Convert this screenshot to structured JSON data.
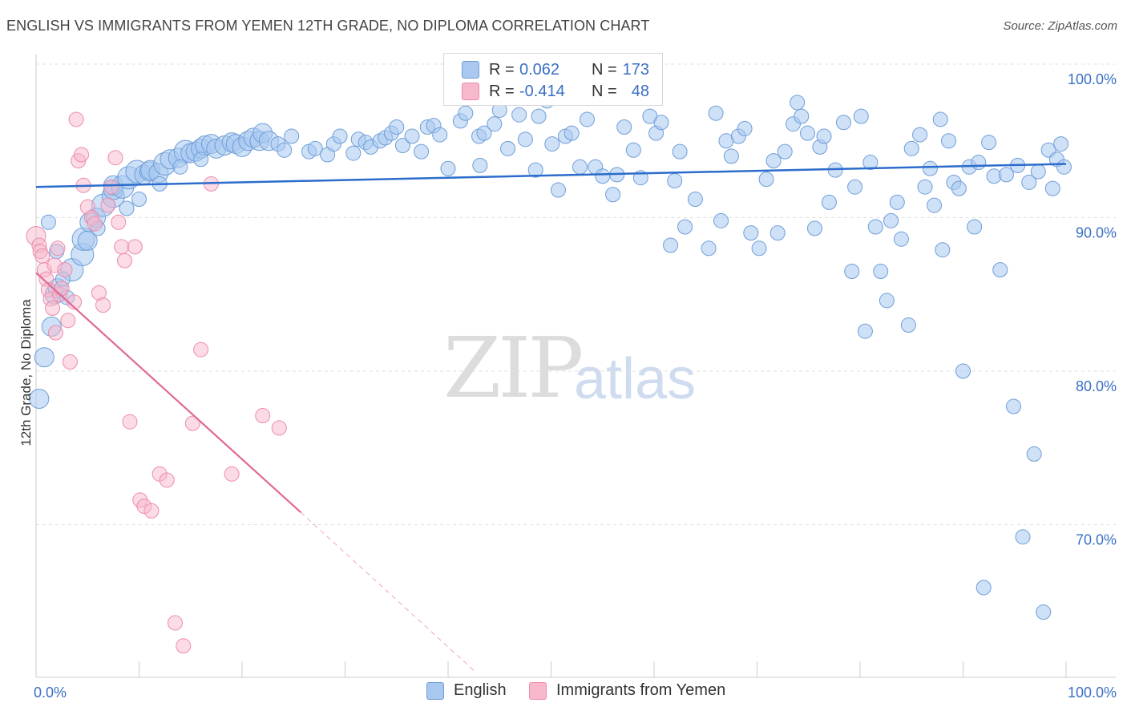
{
  "title": "ENGLISH VS IMMIGRANTS FROM YEMEN 12TH GRADE, NO DIPLOMA CORRELATION CHART",
  "source": "Source: ZipAtlas.com",
  "watermark": {
    "zip": "ZIP",
    "atlas": "atlas"
  },
  "legend": {
    "english": {
      "r_label": "R =",
      "r_value": "0.062",
      "n_label": "N =",
      "n_value": "173"
    },
    "yemen": {
      "r_label": "R =",
      "r_value": "-0.414",
      "n_label": "N =",
      "n_value": "48"
    }
  },
  "colors": {
    "english_fill": "#a8c8f0",
    "english_stroke": "#6f9ed8",
    "english_line": "#2b6ccc",
    "yemen_fill": "#f7b8cc",
    "yemen_stroke": "#ec8cab",
    "yemen_line": "#e06a93",
    "axis_text": "#3a6fc4",
    "grid": "#e0e0e0"
  },
  "chart_data": {
    "type": "scatter",
    "title": "ENGLISH VS IMMIGRANTS FROM YEMEN 12TH GRADE, NO DIPLOMA CORRELATION CHART",
    "xlabel": "",
    "ylabel": "12th Grade, No Diploma",
    "xlim": [
      0,
      100
    ],
    "ylim": [
      60,
      102
    ],
    "x_tick_labels": [
      "0.0%",
      "100.0%"
    ],
    "y_tick_labels": [
      {
        "value": 100,
        "label": "100.0%"
      },
      {
        "value": 90,
        "label": "90.0%"
      },
      {
        "value": 80,
        "label": "80.0%"
      },
      {
        "value": 70,
        "label": "70.0%"
      }
    ],
    "legend_position": "bottom",
    "series": [
      {
        "name": "English",
        "r": 0.062,
        "n": 173,
        "trend": {
          "x": [
            0,
            100
          ],
          "y": [
            92.0,
            93.5
          ],
          "style": "solid"
        },
        "points": [
          [
            0.3,
            78.2,
            12
          ],
          [
            0.8,
            80.9,
            12
          ],
          [
            1.5,
            82.9,
            12
          ],
          [
            1.8,
            85.0,
            12
          ],
          [
            2.1,
            85.4,
            12
          ],
          [
            3.5,
            86.6,
            14
          ],
          [
            4.5,
            87.6,
            14
          ],
          [
            4.6,
            88.6,
            14
          ],
          [
            5.0,
            88.5,
            12
          ],
          [
            5.2,
            89.7,
            12
          ],
          [
            5.8,
            90.0,
            12
          ],
          [
            6.5,
            90.8,
            14
          ],
          [
            7.5,
            91.4,
            14
          ],
          [
            7.5,
            91.8,
            12
          ],
          [
            7.5,
            92.1,
            12
          ],
          [
            8.4,
            92.0,
            14
          ],
          [
            9.0,
            92.6,
            14
          ],
          [
            9.8,
            93.0,
            14
          ],
          [
            10.5,
            92.8,
            12
          ],
          [
            11.0,
            93.0,
            12
          ],
          [
            11.1,
            93.1,
            12
          ],
          [
            11.9,
            92.9,
            12
          ],
          [
            12.5,
            93.5,
            14
          ],
          [
            13.0,
            93.8,
            12
          ],
          [
            13.8,
            93.9,
            12
          ],
          [
            14.5,
            94.3,
            14
          ],
          [
            15.0,
            94.2,
            12
          ],
          [
            15.5,
            94.3,
            12
          ],
          [
            16.0,
            94.5,
            12
          ],
          [
            16.4,
            94.7,
            12
          ],
          [
            17.0,
            94.8,
            12
          ],
          [
            17.5,
            94.5,
            12
          ],
          [
            18.3,
            94.7,
            12
          ],
          [
            19.0,
            94.9,
            12
          ],
          [
            19.4,
            94.8,
            12
          ],
          [
            20.0,
            94.6,
            12
          ],
          [
            20.6,
            95.0,
            12
          ],
          [
            21.1,
            95.2,
            12
          ],
          [
            21.7,
            95.0,
            12
          ],
          [
            22.0,
            95.5,
            12
          ],
          [
            22.6,
            95.0,
            12
          ],
          [
            23.5,
            94.8,
            9
          ],
          [
            24.1,
            94.4,
            9
          ],
          [
            24.8,
            95.3,
            9
          ],
          [
            26.5,
            94.3,
            9
          ],
          [
            27.1,
            94.5,
            9
          ],
          [
            28.3,
            94.1,
            9
          ],
          [
            28.9,
            94.8,
            9
          ],
          [
            29.5,
            95.3,
            9
          ],
          [
            30.8,
            94.2,
            9
          ],
          [
            31.3,
            95.1,
            9
          ],
          [
            32.0,
            94.9,
            9
          ],
          [
            32.5,
            94.6,
            9
          ],
          [
            33.4,
            95.0,
            9
          ],
          [
            33.9,
            95.2,
            9
          ],
          [
            34.5,
            95.5,
            9
          ],
          [
            35.0,
            95.9,
            9
          ],
          [
            35.6,
            94.7,
            9
          ],
          [
            36.5,
            95.3,
            9
          ],
          [
            37.4,
            94.3,
            9
          ],
          [
            38.0,
            95.9,
            9
          ],
          [
            38.6,
            96.0,
            9
          ],
          [
            39.2,
            95.4,
            9
          ],
          [
            40.0,
            93.2,
            9
          ],
          [
            41.2,
            96.3,
            9
          ],
          [
            41.7,
            96.8,
            9
          ],
          [
            43.0,
            95.3,
            9
          ],
          [
            43.1,
            93.4,
            9
          ],
          [
            43.5,
            95.5,
            9
          ],
          [
            44.5,
            96.1,
            9
          ],
          [
            45.0,
            97.0,
            9
          ],
          [
            45.8,
            94.5,
            9
          ],
          [
            46.9,
            96.7,
            9
          ],
          [
            47.5,
            95.1,
            9
          ],
          [
            48.5,
            93.1,
            9
          ],
          [
            48.8,
            96.6,
            9
          ],
          [
            49.6,
            97.6,
            9
          ],
          [
            50.1,
            94.8,
            9
          ],
          [
            50.7,
            91.8,
            9
          ],
          [
            51.4,
            95.3,
            9
          ],
          [
            52.0,
            95.5,
            9
          ],
          [
            52.8,
            93.3,
            9
          ],
          [
            53.5,
            96.4,
            9
          ],
          [
            54.3,
            93.3,
            9
          ],
          [
            55.0,
            92.7,
            9
          ],
          [
            56.0,
            91.5,
            9
          ],
          [
            56.4,
            92.8,
            9
          ],
          [
            57.1,
            95.9,
            9
          ],
          [
            58.0,
            94.4,
            9
          ],
          [
            58.7,
            92.6,
            9
          ],
          [
            59.6,
            96.6,
            9
          ],
          [
            60.2,
            95.5,
            9
          ],
          [
            60.7,
            96.2,
            9
          ],
          [
            61.6,
            88.2,
            9
          ],
          [
            62.0,
            92.4,
            9
          ],
          [
            62.5,
            94.3,
            9
          ],
          [
            63.0,
            89.4,
            9
          ],
          [
            64.0,
            91.2,
            9
          ],
          [
            65.3,
            88.0,
            9
          ],
          [
            66.0,
            96.8,
            9
          ],
          [
            66.5,
            89.8,
            9
          ],
          [
            67.0,
            95.0,
            9
          ],
          [
            67.5,
            94.0,
            9
          ],
          [
            68.2,
            95.3,
            9
          ],
          [
            68.8,
            95.8,
            9
          ],
          [
            69.4,
            89.0,
            9
          ],
          [
            70.2,
            88.0,
            9
          ],
          [
            70.9,
            92.5,
            9
          ],
          [
            71.6,
            93.7,
            9
          ],
          [
            72.0,
            89.0,
            9
          ],
          [
            72.7,
            94.3,
            9
          ],
          [
            73.5,
            96.1,
            9
          ],
          [
            73.9,
            97.5,
            9
          ],
          [
            74.3,
            96.6,
            9
          ],
          [
            74.9,
            95.5,
            9
          ],
          [
            75.6,
            89.3,
            9
          ],
          [
            76.1,
            94.6,
            9
          ],
          [
            76.5,
            95.3,
            9
          ],
          [
            77.0,
            91.0,
            9
          ],
          [
            77.6,
            93.1,
            9
          ],
          [
            78.4,
            96.2,
            9
          ],
          [
            79.2,
            86.5,
            9
          ],
          [
            79.5,
            92.0,
            9
          ],
          [
            80.1,
            96.6,
            9
          ],
          [
            80.5,
            82.6,
            9
          ],
          [
            81.0,
            93.6,
            9
          ],
          [
            81.5,
            89.4,
            9
          ],
          [
            82.0,
            86.5,
            9
          ],
          [
            82.6,
            84.6,
            9
          ],
          [
            83.0,
            89.8,
            9
          ],
          [
            83.6,
            91.0,
            9
          ],
          [
            84.0,
            88.6,
            9
          ],
          [
            84.7,
            83.0,
            9
          ],
          [
            85.0,
            94.5,
            9
          ],
          [
            85.8,
            95.4,
            9
          ],
          [
            86.3,
            92.0,
            9
          ],
          [
            86.8,
            93.2,
            9
          ],
          [
            87.2,
            90.8,
            9
          ],
          [
            87.8,
            96.4,
            9
          ],
          [
            88.0,
            87.9,
            9
          ],
          [
            88.6,
            95.0,
            9
          ],
          [
            89.1,
            92.3,
            9
          ],
          [
            89.6,
            91.9,
            9
          ],
          [
            90.0,
            80.0,
            9
          ],
          [
            90.6,
            93.3,
            9
          ],
          [
            91.1,
            89.4,
            9
          ],
          [
            91.5,
            93.6,
            9
          ],
          [
            92.0,
            65.9,
            9
          ],
          [
            92.5,
            94.9,
            9
          ],
          [
            93.0,
            92.7,
            9
          ],
          [
            93.6,
            86.6,
            9
          ],
          [
            94.2,
            92.8,
            9
          ],
          [
            94.9,
            77.7,
            9
          ],
          [
            95.3,
            93.4,
            9
          ],
          [
            95.8,
            69.2,
            9
          ],
          [
            96.4,
            92.3,
            9
          ],
          [
            96.9,
            74.6,
            9
          ],
          [
            97.3,
            93.0,
            9
          ],
          [
            97.8,
            64.3,
            9
          ],
          [
            98.3,
            94.4,
            9
          ],
          [
            98.7,
            91.9,
            9
          ],
          [
            99.1,
            93.8,
            9
          ],
          [
            99.5,
            94.8,
            9
          ],
          [
            99.8,
            93.3,
            9
          ],
          [
            1.2,
            89.7,
            9
          ],
          [
            2.0,
            87.8,
            9
          ],
          [
            2.6,
            86.0,
            9
          ],
          [
            3.0,
            84.8,
            9
          ],
          [
            6.0,
            89.3,
            9
          ],
          [
            8.8,
            90.6,
            9
          ],
          [
            10.0,
            91.2,
            9
          ],
          [
            12.0,
            92.2,
            9
          ],
          [
            14.0,
            93.3,
            9
          ],
          [
            16.0,
            93.8,
            9
          ]
        ]
      },
      {
        "name": "Immigrants from Yemen",
        "r": -0.414,
        "n": 48,
        "trend": {
          "x": [
            0,
            25.7,
            42.5
          ],
          "y": [
            86.4,
            70.8,
            60.5
          ],
          "style": "solid-then-dashed"
        },
        "points": [
          [
            0.0,
            88.8,
            12
          ],
          [
            0.3,
            88.2,
            9
          ],
          [
            0.4,
            87.8,
            9
          ],
          [
            0.6,
            87.5,
            9
          ],
          [
            0.8,
            86.6,
            9
          ],
          [
            1.0,
            86.0,
            9
          ],
          [
            1.2,
            85.3,
            9
          ],
          [
            1.4,
            84.7,
            9
          ],
          [
            1.6,
            84.1,
            9
          ],
          [
            1.9,
            82.5,
            9
          ],
          [
            1.8,
            86.9,
            9
          ],
          [
            2.1,
            88.0,
            9
          ],
          [
            2.3,
            85.0,
            9
          ],
          [
            2.5,
            85.4,
            9
          ],
          [
            2.8,
            86.6,
            9
          ],
          [
            3.1,
            83.3,
            9
          ],
          [
            3.3,
            80.6,
            9
          ],
          [
            3.7,
            84.5,
            9
          ],
          [
            3.9,
            96.4,
            9
          ],
          [
            4.1,
            93.7,
            9
          ],
          [
            4.4,
            94.1,
            9
          ],
          [
            4.6,
            92.1,
            9
          ],
          [
            5.0,
            90.7,
            9
          ],
          [
            5.4,
            90.0,
            9
          ],
          [
            5.7,
            89.6,
            9
          ],
          [
            6.1,
            85.1,
            9
          ],
          [
            6.5,
            84.3,
            9
          ],
          [
            7.0,
            90.8,
            9
          ],
          [
            7.3,
            92.0,
            9
          ],
          [
            7.7,
            93.9,
            9
          ],
          [
            8.0,
            89.7,
            9
          ],
          [
            8.3,
            88.1,
            9
          ],
          [
            8.6,
            87.2,
            9
          ],
          [
            9.1,
            76.7,
            9
          ],
          [
            9.6,
            88.1,
            9
          ],
          [
            10.1,
            71.6,
            9
          ],
          [
            10.5,
            71.2,
            9
          ],
          [
            11.2,
            70.9,
            9
          ],
          [
            12.0,
            73.3,
            9
          ],
          [
            12.7,
            72.9,
            9
          ],
          [
            13.5,
            63.6,
            9
          ],
          [
            14.3,
            62.1,
            9
          ],
          [
            15.2,
            76.6,
            9
          ],
          [
            16.0,
            81.4,
            9
          ],
          [
            17.0,
            92.2,
            9
          ],
          [
            19.0,
            73.3,
            9
          ],
          [
            22.0,
            77.1,
            9
          ],
          [
            23.6,
            76.3,
            9
          ]
        ]
      }
    ]
  }
}
